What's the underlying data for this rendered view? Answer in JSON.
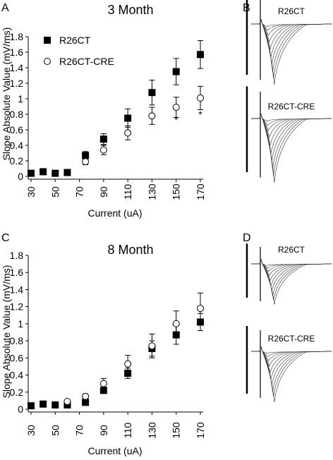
{
  "panels": [
    {
      "letter": "A"
    },
    {
      "letter": "B"
    },
    {
      "letter": "C"
    },
    {
      "letter": "D"
    }
  ],
  "traces": {
    "top": {
      "label1": "R26CT",
      "label2": "R26CT-CRE"
    },
    "bottom": {
      "label1": "R26CT",
      "label2": "R26CT-CRE"
    }
  },
  "chart_data": [
    {
      "type": "scatter",
      "title": "3 Month",
      "xlabel": "Current (uA)",
      "ylabel": "Slope Absolute Value (mV/ms)",
      "x_ticks": [
        30,
        50,
        70,
        90,
        110,
        130,
        150,
        170
      ],
      "ylim": [
        0,
        1.8
      ],
      "y_ticks": [
        "0",
        "0.2",
        "0.4",
        "0.6",
        "0.8",
        "1",
        "1.2",
        "1.4",
        "1.6",
        "1.8"
      ],
      "legend": "top-left",
      "annotations": [
        {
          "x": 150,
          "y": 0.74,
          "text": "*"
        },
        {
          "x": 170,
          "y": 0.81,
          "text": "*"
        }
      ],
      "series": [
        {
          "name": "R26CT",
          "marker": "filled-square",
          "points": [
            {
              "x": 30,
              "y": 0.04,
              "err": 0
            },
            {
              "x": 40,
              "y": 0.06,
              "err": 0
            },
            {
              "x": 50,
              "y": 0.04,
              "err": 0
            },
            {
              "x": 60,
              "y": 0.05,
              "err": 0
            },
            {
              "x": 75,
              "y": 0.27,
              "err": 0.05
            },
            {
              "x": 90,
              "y": 0.48,
              "err": 0.07
            },
            {
              "x": 110,
              "y": 0.75,
              "err": 0.12
            },
            {
              "x": 130,
              "y": 1.08,
              "err": 0.16
            },
            {
              "x": 150,
              "y": 1.35,
              "err": 0.17
            },
            {
              "x": 170,
              "y": 1.57,
              "err": 0.18
            }
          ]
        },
        {
          "name": "R26CT-CRE",
          "marker": "open-circle",
          "points": [
            {
              "x": 75,
              "y": 0.19,
              "err": 0.04
            },
            {
              "x": 90,
              "y": 0.34,
              "err": 0.06
            },
            {
              "x": 110,
              "y": 0.56,
              "err": 0.09
            },
            {
              "x": 130,
              "y": 0.78,
              "err": 0.11
            },
            {
              "x": 150,
              "y": 0.89,
              "err": 0.13
            },
            {
              "x": 170,
              "y": 1.01,
              "err": 0.15
            }
          ]
        }
      ]
    },
    {
      "type": "scatter",
      "title": "8 Month",
      "xlabel": "Current (uA)",
      "ylabel": "Slope Absolute Value (mV/ms)",
      "x_ticks": [
        30,
        50,
        70,
        90,
        110,
        130,
        150,
        170
      ],
      "ylim": [
        0,
        1.8
      ],
      "y_ticks": [
        "0",
        "0.2",
        "0.4",
        "0.6",
        "0.8",
        "1",
        "1.2",
        "1.4",
        "1.6",
        "1.8"
      ],
      "series": [
        {
          "name": "R26CT",
          "marker": "filled-square",
          "points": [
            {
              "x": 30,
              "y": 0.04,
              "err": 0
            },
            {
              "x": 40,
              "y": 0.06,
              "err": 0
            },
            {
              "x": 50,
              "y": 0.05,
              "err": 0
            },
            {
              "x": 60,
              "y": 0.05,
              "err": 0
            },
            {
              "x": 75,
              "y": 0.08,
              "err": 0
            },
            {
              "x": 90,
              "y": 0.22,
              "err": 0
            },
            {
              "x": 110,
              "y": 0.42,
              "err": 0.06
            },
            {
              "x": 130,
              "y": 0.71,
              "err": 0.09
            },
            {
              "x": 150,
              "y": 0.87,
              "err": 0.11
            },
            {
              "x": 170,
              "y": 1.02,
              "err": 0.1
            }
          ]
        },
        {
          "name": "R26CT-CRE",
          "marker": "open-circle",
          "points": [
            {
              "x": 60,
              "y": 0.09,
              "err": 0
            },
            {
              "x": 75,
              "y": 0.15,
              "err": 0.03
            },
            {
              "x": 90,
              "y": 0.3,
              "err": 0.06
            },
            {
              "x": 110,
              "y": 0.53,
              "err": 0.1
            },
            {
              "x": 130,
              "y": 0.74,
              "err": 0.14
            },
            {
              "x": 150,
              "y": 1.0,
              "err": 0.15
            },
            {
              "x": 170,
              "y": 1.18,
              "err": 0.18
            }
          ]
        }
      ]
    }
  ]
}
